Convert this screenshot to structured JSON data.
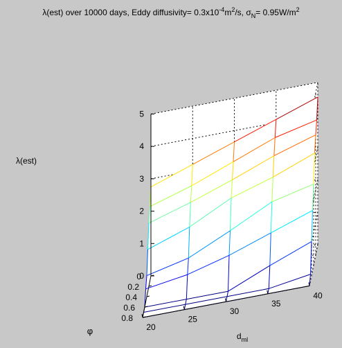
{
  "figure": {
    "background": "#c8c8c8",
    "title_parts": {
      "pre": "λ(est) over 10000 days, Eddy diffusivity= 0.3x10",
      "exp1": "-4",
      "mid": "m",
      "exp2": "2",
      "mid2": "/s, σ",
      "sub": "N",
      "post": "= 0.95W/m",
      "exp3": "2"
    }
  },
  "chart_data": {
    "type": "surface",
    "title": "λ(est) over 10000 days, Eddy diffusivity= 0.3x10^-4 m^2/s, σ_N= 0.95W/m^2",
    "zlabel": "λ(est)",
    "xlabel": "φ",
    "ylabel_parts": {
      "base": "d",
      "sub": "ml"
    },
    "xlim": [
      0,
      0.8
    ],
    "ylim": [
      20,
      40
    ],
    "zlim": [
      0,
      5
    ],
    "phi_ticks": [
      "0",
      "0.2",
      "0.4",
      "0.6",
      "0.8"
    ],
    "d_ticks": [
      "20",
      "25",
      "30",
      "35",
      "40"
    ],
    "z_ticks": [
      "0",
      "1",
      "2",
      "3",
      "4",
      "5"
    ],
    "grid": true,
    "phi": [
      0,
      0.1,
      0.2,
      0.3,
      0.4,
      0.5,
      0.6,
      0.7,
      0.8
    ],
    "d_ml": [
      20,
      25,
      30,
      35,
      40
    ],
    "values": [
      [
        2.75,
        3.2,
        3.65,
        4.1,
        4.55
      ],
      [
        2.3,
        2.7,
        3.2,
        3.7,
        4.0
      ],
      [
        1.95,
        2.35,
        2.8,
        3.3,
        3.7
      ],
      [
        1.3,
        1.75,
        2.4,
        2.8,
        3.3
      ],
      [
        0.65,
        0.95,
        1.55,
        2.2,
        2.5
      ],
      [
        0.4,
        0.6,
        0.95,
        1.4,
        1.85
      ],
      [
        0.0,
        0.0,
        0.0,
        0.55,
        1.05
      ],
      [
        0.0,
        0.0,
        0.0,
        0.0,
        0.2
      ],
      [
        0.0,
        0.0,
        0.0,
        0.0,
        0.0
      ]
    ],
    "colormap": "jet",
    "view": {
      "azimuth": -37.5,
      "elevation": 30
    }
  }
}
